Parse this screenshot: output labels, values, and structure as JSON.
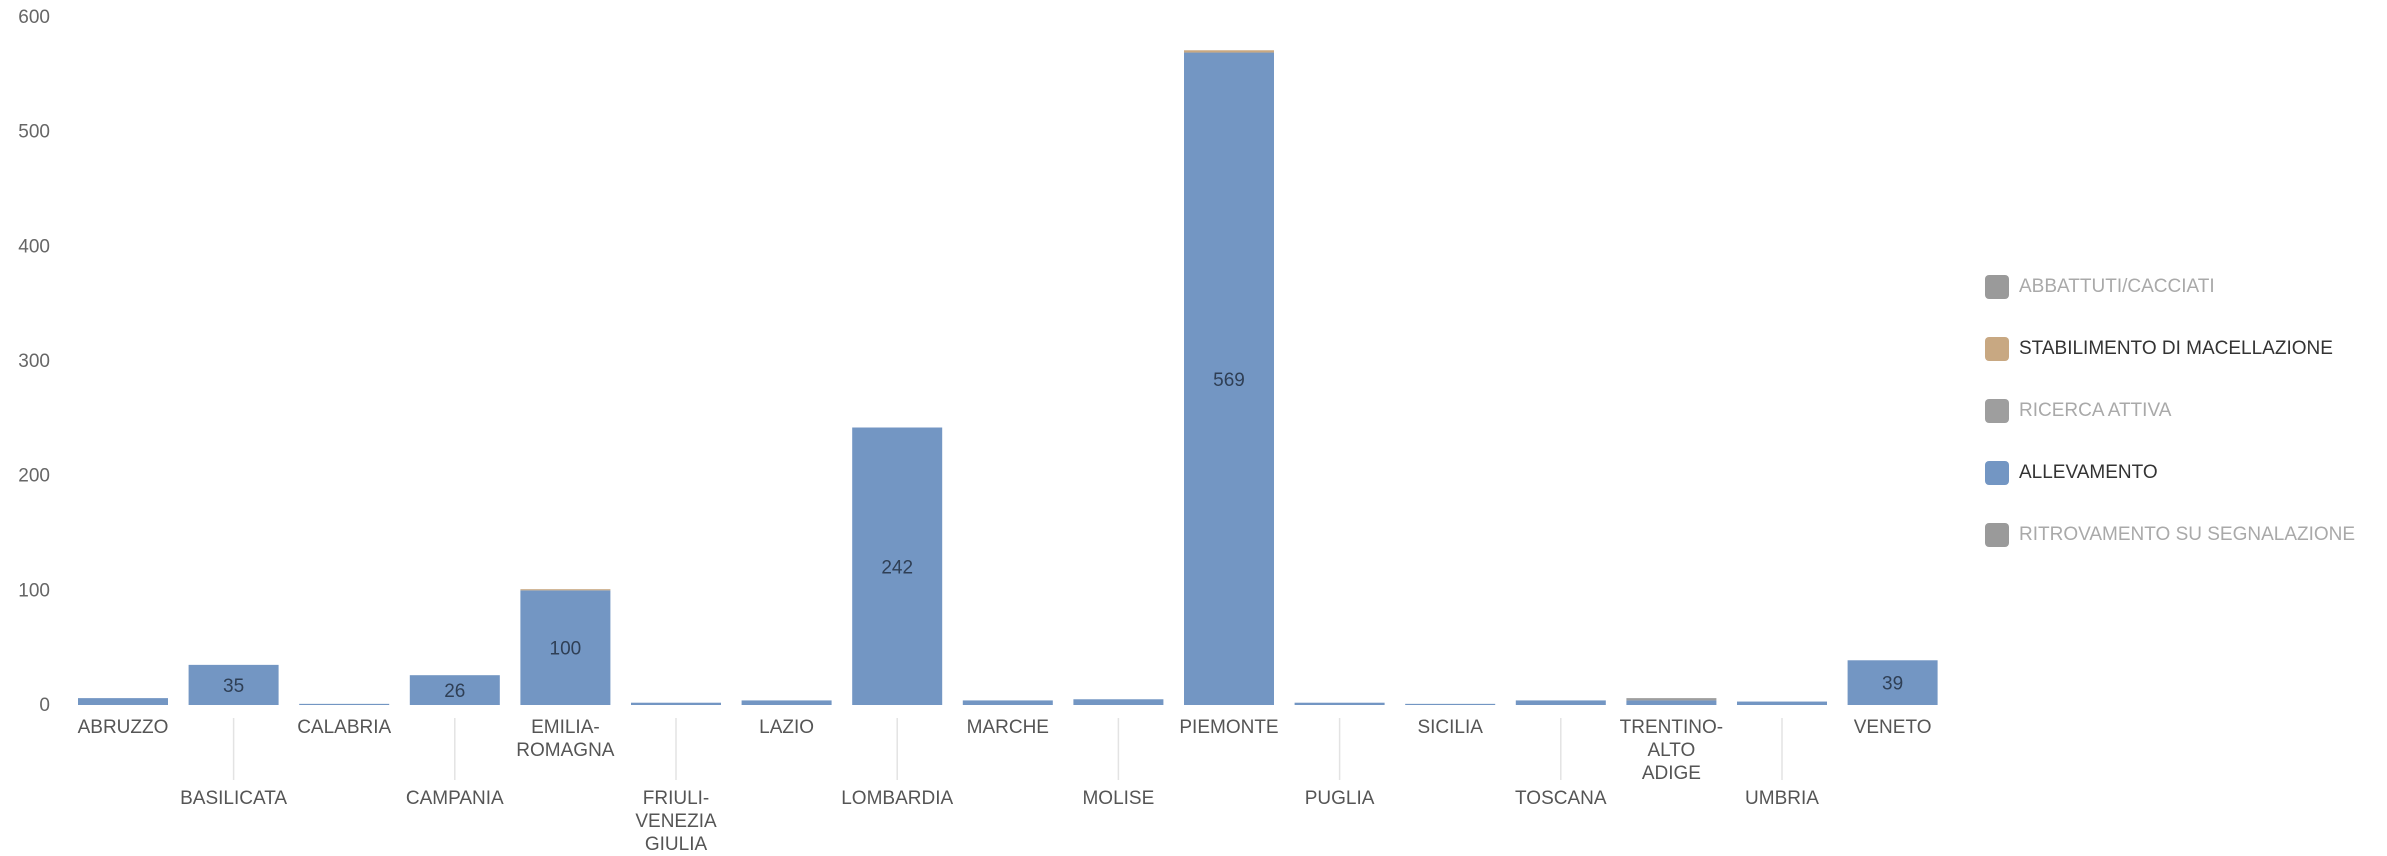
{
  "chart_data": {
    "type": "bar",
    "stacked": true,
    "title": "",
    "xlabel": "",
    "ylabel": "",
    "ylim": [
      0,
      600
    ],
    "yticks": [
      0,
      100,
      200,
      300,
      400,
      500,
      600
    ],
    "grid": false,
    "legend_position": "right",
    "categories": [
      "ABRUZZO",
      "BASILICATA",
      "CALABRIA",
      "CAMPANIA",
      "EMILIA-ROMAGNA",
      "FRIULI-VENEZIA GIULIA",
      "LAZIO",
      "LOMBARDIA",
      "MARCHE",
      "MOLISE",
      "PIEMONTE",
      "PUGLIA",
      "SICILIA",
      "TOSCANA",
      "TRENTINO-ALTO ADIGE",
      "UMBRIA",
      "VENETO"
    ],
    "category_lines": [
      [
        "ABRUZZO"
      ],
      [
        "BASILICATA"
      ],
      [
        "CALABRIA"
      ],
      [
        "CAMPANIA"
      ],
      [
        "EMILIA-",
        "ROMAGNA"
      ],
      [
        "FRIULI-",
        "VENEZIA",
        "GIULIA"
      ],
      [
        "LAZIO"
      ],
      [
        "LOMBARDIA"
      ],
      [
        "MARCHE"
      ],
      [
        "MOLISE"
      ],
      [
        "PIEMONTE"
      ],
      [
        "PUGLIA"
      ],
      [
        "SICILIA"
      ],
      [
        "TOSCANA"
      ],
      [
        "TRENTINO-",
        "ALTO",
        "ADIGE"
      ],
      [
        "UMBRIA"
      ],
      [
        "VENETO"
      ]
    ],
    "series": [
      {
        "name": "ALLEVAMENTO",
        "color": "#7396c3",
        "values": [
          6,
          35,
          1,
          26,
          100,
          2,
          4,
          242,
          4,
          5,
          569,
          2,
          1,
          4,
          4,
          3,
          39
        ]
      },
      {
        "name": "RICERCA ATTIVA",
        "color": "#9e9e9e",
        "values": [
          0,
          0,
          0,
          0,
          0,
          0,
          0,
          0,
          0,
          0,
          0,
          0,
          0,
          0,
          2,
          0,
          0
        ]
      },
      {
        "name": "STABILIMENTO DI MACELLAZIONE",
        "color": "#c8a882",
        "values": [
          0,
          0,
          0,
          0,
          1,
          0,
          0,
          0,
          0,
          0,
          2,
          0,
          0,
          0,
          0,
          0,
          0
        ]
      },
      {
        "name": "ABBATTUTI/CACCIATI",
        "color": "#9a9a9a",
        "values": [
          0,
          0,
          0,
          0,
          0,
          0,
          0,
          0,
          0,
          0,
          0,
          0,
          0,
          0,
          0,
          0,
          0
        ]
      },
      {
        "name": "RITROVAMENTO SU SEGNALAZIONE",
        "color": "#9a9a9a",
        "values": [
          0,
          0,
          0,
          0,
          0,
          0,
          0,
          0,
          0,
          0,
          0,
          0,
          0,
          0,
          0,
          0,
          0
        ]
      }
    ],
    "data_labels": [
      {
        "category": "BASILICATA",
        "text": "35"
      },
      {
        "category": "CAMPANIA",
        "text": "26"
      },
      {
        "category": "EMILIA-ROMAGNA",
        "text": "100"
      },
      {
        "category": "LOMBARDIA",
        "text": "242"
      },
      {
        "category": "PIEMONTE",
        "text": "569"
      },
      {
        "category": "VENETO",
        "text": "39"
      }
    ]
  },
  "legend": {
    "items": [
      {
        "label": "ABBATTUTI/CACCIATI",
        "color": "#9a9a9a",
        "emphasis": "muted"
      },
      {
        "label": "STABILIMENTO DI MACELLAZIONE",
        "color": "#c8a882",
        "emphasis": "strong"
      },
      {
        "label": "RICERCA ATTIVA",
        "color": "#9e9e9e",
        "emphasis": "muted"
      },
      {
        "label": "ALLEVAMENTO",
        "color": "#7396c3",
        "emphasis": "strong"
      },
      {
        "label": "RITROVAMENTO SU SEGNALAZIONE",
        "color": "#9a9a9a",
        "emphasis": "muted"
      }
    ]
  }
}
